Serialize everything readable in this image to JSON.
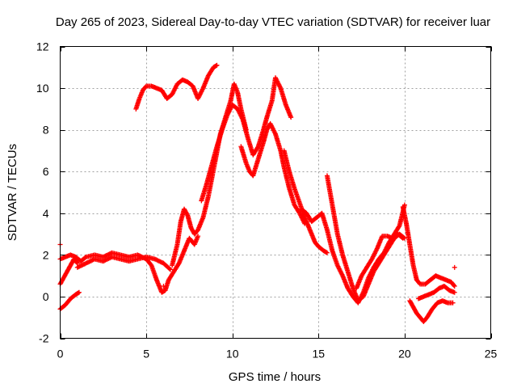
{
  "chart_data": {
    "type": "scatter",
    "title": "Day 265 of 2023, Sidereal Day-to-day VTEC variation (SDTVAR) for receiver luar",
    "xlabel": "GPS time / hours",
    "ylabel": "SDTVAR / TECUs",
    "xlim": [
      0,
      25
    ],
    "ylim": [
      -2,
      12
    ],
    "xticks": [
      0,
      5,
      10,
      15,
      20,
      25
    ],
    "yticks": [
      -2,
      0,
      2,
      4,
      6,
      8,
      10,
      12
    ],
    "grid": true,
    "marker": "plus",
    "color": "#ff0000",
    "series": [
      {
        "name": "a",
        "x": [
          0.0,
          0.3,
          0.6,
          0.9,
          1.2,
          1.5,
          2.0,
          2.5,
          3.0,
          3.5,
          4.0,
          4.5,
          5.0,
          5.3,
          5.6,
          5.9,
          6.1,
          6.3,
          6.6,
          6.9,
          7.2,
          7.5,
          7.8,
          8.0
        ],
        "y": [
          1.8,
          1.9,
          2.0,
          1.9,
          1.7,
          1.9,
          2.0,
          1.9,
          2.1,
          2.0,
          1.9,
          2.0,
          1.8,
          1.5,
          0.8,
          0.2,
          0.3,
          0.8,
          1.2,
          1.6,
          2.2,
          2.8,
          2.5,
          2.9
        ]
      },
      {
        "name": "b",
        "x": [
          0.0,
          0.4,
          0.8,
          1.0
        ],
        "y": [
          0.6,
          1.2,
          1.8,
          1.6
        ]
      },
      {
        "name": "c",
        "x": [
          0.0,
          0.3,
          0.6,
          0.9,
          1.1
        ],
        "y": [
          -0.6,
          -0.4,
          -0.1,
          0.1,
          0.2
        ]
      },
      {
        "name": "d",
        "x": [
          1.0,
          1.5,
          2.0,
          2.5,
          3.0,
          3.5,
          4.0,
          4.5,
          5.0,
          5.5,
          6.0,
          6.4
        ],
        "y": [
          1.4,
          1.6,
          1.8,
          1.7,
          1.9,
          1.8,
          1.7,
          1.8,
          1.9,
          1.8,
          1.6,
          1.3
        ]
      },
      {
        "name": "e",
        "x": [
          4.4,
          4.6,
          4.8,
          5.0,
          5.3,
          5.6,
          5.9,
          6.2,
          6.5,
          6.8,
          7.1,
          7.4,
          7.7,
          8.0,
          8.3,
          8.6,
          8.9,
          9.1
        ],
        "y": [
          9.0,
          9.5,
          9.9,
          10.1,
          10.1,
          10.0,
          9.9,
          9.5,
          9.7,
          10.2,
          10.4,
          10.3,
          10.1,
          9.5,
          10.0,
          10.6,
          11.0,
          11.1
        ]
      },
      {
        "name": "f",
        "x": [
          6.5,
          6.8,
          7.0,
          7.2,
          7.4,
          7.6,
          7.8,
          8.0,
          8.3,
          8.6,
          9.0,
          9.3,
          9.6,
          9.9,
          10.1,
          10.3,
          10.5,
          10.8
        ],
        "y": [
          1.5,
          2.5,
          3.6,
          4.2,
          3.9,
          3.3,
          3.0,
          3.2,
          3.8,
          4.8,
          6.5,
          7.8,
          8.6,
          9.4,
          10.2,
          9.8,
          9.0,
          8.0
        ]
      },
      {
        "name": "g",
        "x": [
          8.2,
          8.5,
          8.8,
          9.1,
          9.4,
          9.7,
          10.0,
          10.3,
          10.6,
          10.9,
          11.2,
          11.5,
          11.8,
          12.0,
          12.3,
          12.5,
          12.8,
          13.1,
          13.4
        ],
        "y": [
          4.6,
          5.4,
          6.3,
          7.2,
          8.0,
          8.7,
          9.2,
          9.0,
          8.5,
          7.6,
          6.8,
          7.2,
          8.0,
          8.6,
          9.4,
          10.5,
          10.0,
          9.2,
          8.6
        ]
      },
      {
        "name": "h",
        "x": [
          10.5,
          10.8,
          11.0,
          11.2,
          11.5,
          11.8,
          12.0,
          12.2,
          12.5,
          12.8,
          13.0,
          13.3,
          13.6,
          13.9,
          14.2
        ],
        "y": [
          7.2,
          6.4,
          6.0,
          5.8,
          6.6,
          7.4,
          8.0,
          8.3,
          7.8,
          7.0,
          6.2,
          5.2,
          4.4,
          4.0,
          3.5
        ]
      },
      {
        "name": "i",
        "x": [
          13.0,
          13.3,
          13.6,
          13.9,
          14.2,
          14.5,
          14.8,
          15.0,
          15.3,
          15.5
        ],
        "y": [
          7.0,
          6.0,
          5.2,
          4.5,
          3.8,
          3.2,
          2.6,
          2.4,
          2.2,
          2.1
        ]
      },
      {
        "name": "j",
        "x": [
          14.0,
          14.3,
          14.6,
          14.9,
          15.2,
          15.5,
          15.8,
          16.1,
          16.4,
          16.7,
          17.0,
          17.3,
          17.6,
          17.9,
          18.2,
          18.5,
          18.8,
          19.1,
          19.4,
          19.7,
          20.0
        ],
        "y": [
          4.2,
          4.0,
          3.6,
          3.8,
          4.0,
          3.2,
          2.2,
          1.5,
          1.0,
          0.4,
          0.0,
          -0.3,
          0.2,
          0.9,
          1.4,
          1.8,
          2.1,
          2.6,
          3.0,
          3.4,
          4.4
        ]
      },
      {
        "name": "k",
        "x": [
          15.5,
          15.8,
          16.1,
          16.4,
          16.7,
          17.0,
          17.3,
          17.6,
          17.9,
          18.2,
          18.5,
          18.8,
          19.1,
          19.4,
          19.7,
          20.0
        ],
        "y": [
          5.8,
          4.4,
          3.0,
          2.0,
          1.2,
          0.4,
          -0.2,
          0.0,
          0.6,
          1.2,
          1.6,
          2.0,
          2.4,
          2.8,
          3.0,
          2.8
        ]
      },
      {
        "name": "l",
        "x": [
          17.2,
          17.5,
          17.8,
          18.1,
          18.4,
          18.7,
          19.0,
          19.3,
          19.6,
          19.9
        ],
        "y": [
          0.4,
          1.0,
          1.4,
          1.8,
          2.3,
          2.9,
          2.9,
          2.8,
          3.0,
          2.8
        ]
      },
      {
        "name": "m",
        "x": [
          19.9,
          20.1,
          20.3,
          20.5,
          20.7,
          20.9,
          21.2,
          21.5,
          21.8,
          22.1,
          22.4,
          22.7,
          22.9
        ],
        "y": [
          4.3,
          3.5,
          2.5,
          1.5,
          0.8,
          0.6,
          0.6,
          0.8,
          1.0,
          0.9,
          0.8,
          0.7,
          0.5
        ]
      },
      {
        "name": "n",
        "x": [
          20.3,
          20.5,
          20.7,
          20.9,
          21.1,
          21.3,
          21.6,
          21.9,
          22.2,
          22.5,
          22.8
        ],
        "y": [
          -0.2,
          -0.5,
          -0.8,
          -1.0,
          -1.2,
          -1.0,
          -0.6,
          -0.3,
          -0.2,
          -0.3,
          -0.3
        ]
      },
      {
        "name": "o",
        "x": [
          20.8,
          21.1,
          21.4,
          21.7,
          22.0,
          22.3,
          22.6,
          22.9
        ],
        "y": [
          -0.1,
          0.0,
          0.1,
          0.2,
          0.4,
          0.5,
          0.3,
          0.2
        ]
      },
      {
        "name": "p",
        "x": [
          0.0,
          22.9,
          6.0
        ],
        "y": [
          2.5,
          1.4,
          0.5
        ]
      }
    ]
  }
}
